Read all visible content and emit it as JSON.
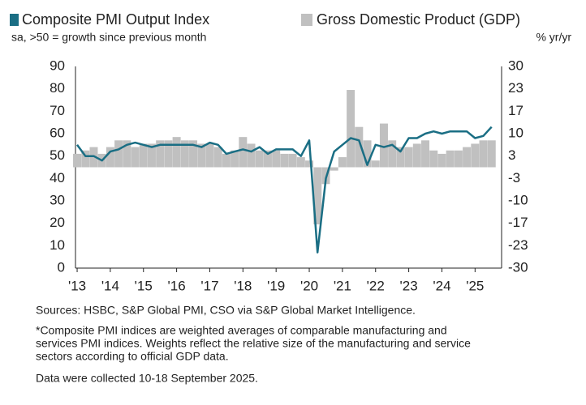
{
  "chart_data": {
    "type": "bar-line",
    "subtitle": "sa, >50 = growth since previous month",
    "y2_label": "% yr/yr",
    "x": [
      2013,
      2013.25,
      2013.5,
      2013.75,
      2014,
      2014.25,
      2014.5,
      2014.75,
      2015,
      2015.25,
      2015.5,
      2015.75,
      2016,
      2016.25,
      2016.5,
      2016.75,
      2017,
      2017.25,
      2017.5,
      2017.75,
      2018,
      2018.25,
      2018.5,
      2018.75,
      2019,
      2019.25,
      2019.5,
      2019.75,
      2020,
      2020.25,
      2020.5,
      2020.75,
      2021,
      2021.25,
      2021.5,
      2021.75,
      2022,
      2022.25,
      2022.5,
      2022.75,
      2023,
      2023.25,
      2023.5,
      2023.75,
      2024,
      2024.25,
      2024.5,
      2024.75,
      2025,
      2025.25,
      2025.5
    ],
    "series": [
      {
        "name": "Composite PMI Output Index",
        "color": "#1a6e84",
        "kind": "line",
        "axis": "y",
        "values": [
          55,
          50,
          50,
          48,
          52,
          53,
          55,
          56,
          55,
          54,
          55,
          55,
          55,
          55,
          55,
          54,
          56,
          55,
          51,
          52,
          53,
          52,
          54,
          51,
          53,
          53,
          53,
          50,
          57,
          7,
          40,
          52,
          55,
          58,
          57,
          46,
          55,
          54,
          55,
          52,
          58,
          58,
          60,
          61,
          60,
          61,
          61,
          61,
          58,
          59,
          63
        ]
      },
      {
        "name": "Gross Domestic Product (GDP)",
        "color": "#c0c0c0",
        "kind": "bar",
        "axis": "y2",
        "values": [
          4,
          5,
          6,
          4,
          6,
          8,
          8,
          6,
          7,
          7,
          8,
          8,
          9,
          8,
          8,
          7,
          7,
          6,
          4,
          5,
          9,
          7,
          5,
          5,
          5,
          4,
          4,
          3,
          2,
          -17,
          -5,
          -1,
          3,
          23,
          12,
          8,
          2,
          13,
          8,
          6,
          6,
          7,
          8,
          5,
          4,
          5,
          5,
          6,
          7,
          8,
          8
        ]
      }
    ],
    "xlim": [
      2012.95,
      2025.8
    ],
    "xticks": [
      {
        "value": 2013,
        "label": "'13"
      },
      {
        "value": 2014,
        "label": "'14"
      },
      {
        "value": 2015,
        "label": "'15"
      },
      {
        "value": 2016,
        "label": "'16"
      },
      {
        "value": 2017,
        "label": "'17"
      },
      {
        "value": 2018,
        "label": "'18"
      },
      {
        "value": 2019,
        "label": "'19"
      },
      {
        "value": 2020,
        "label": "'20"
      },
      {
        "value": 2021,
        "label": "'21"
      },
      {
        "value": 2022,
        "label": "'22"
      },
      {
        "value": 2023,
        "label": "'23"
      },
      {
        "value": 2024,
        "label": "'24"
      },
      {
        "value": 2025,
        "label": "'25"
      }
    ],
    "ylim": [
      0,
      90
    ],
    "yticks": [
      0,
      10,
      20,
      30,
      40,
      50,
      60,
      70,
      80,
      90
    ],
    "y2lim": [
      -30,
      30
    ],
    "y2ticks": [
      -30,
      {
        "value": -23.33,
        "label": "-23"
      },
      {
        "value": -16.67,
        "label": "-17"
      },
      -10,
      {
        "value": -3.33,
        "label": "-3"
      },
      {
        "value": 3.33,
        "label": "3"
      },
      10,
      {
        "value": 16.67,
        "label": "17"
      },
      {
        "value": 23.33,
        "label": "23"
      },
      30
    ],
    "notes": [
      "Sources: HSBC, S&P Global PMI, CSO via S&P Global Market Intelligence.",
      "*Composite PMI indices are weighted averages of comparable manufacturing and",
      "services PMI indices. Weights reflect the relative size of the manufacturing and service",
      "sectors according to official GDP data.",
      "Data were collected 10-18 September 2025."
    ]
  }
}
